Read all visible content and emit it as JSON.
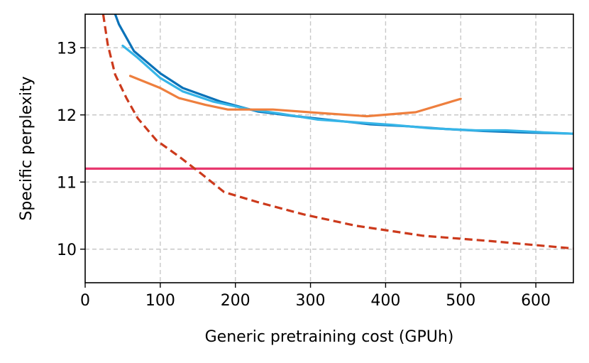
{
  "chart_data": {
    "type": "line",
    "title": "",
    "xlabel": "Generic pretraining cost (GPUh)",
    "ylabel": "Specific perplexity",
    "xlim": [
      0,
      650
    ],
    "ylim": [
      9.5,
      13.5
    ],
    "xticks": [
      0,
      100,
      200,
      300,
      400,
      500,
      600
    ],
    "yticks": [
      10,
      11,
      12,
      13
    ],
    "grid": true,
    "legend": "none",
    "series": [
      {
        "name": "series-dark-blue",
        "color": "#0a72b8",
        "style": "solid",
        "points": [
          [
            40,
            13.5
          ],
          [
            45,
            13.35
          ],
          [
            65,
            12.95
          ],
          [
            100,
            12.62
          ],
          [
            130,
            12.4
          ],
          [
            180,
            12.2
          ],
          [
            230,
            12.05
          ],
          [
            280,
            11.98
          ],
          [
            330,
            11.92
          ],
          [
            380,
            11.86
          ],
          [
            430,
            11.83
          ],
          [
            480,
            11.79
          ],
          [
            530,
            11.76
          ],
          [
            580,
            11.74
          ],
          [
            620,
            11.73
          ],
          [
            650,
            11.72
          ]
        ]
      },
      {
        "name": "series-light-blue",
        "color": "#36b5e8",
        "style": "solid",
        "points": [
          [
            50,
            13.03
          ],
          [
            70,
            12.85
          ],
          [
            100,
            12.55
          ],
          [
            130,
            12.35
          ],
          [
            170,
            12.2
          ],
          [
            220,
            12.08
          ],
          [
            260,
            12.02
          ],
          [
            310,
            11.93
          ],
          [
            360,
            11.89
          ],
          [
            410,
            11.85
          ],
          [
            460,
            11.8
          ],
          [
            520,
            11.77
          ],
          [
            560,
            11.77
          ],
          [
            610,
            11.74
          ],
          [
            650,
            11.72
          ]
        ]
      },
      {
        "name": "series-orange",
        "color": "#ee7f3e",
        "style": "solid",
        "points": [
          [
            60,
            12.58
          ],
          [
            100,
            12.4
          ],
          [
            125,
            12.25
          ],
          [
            160,
            12.15
          ],
          [
            190,
            12.08
          ],
          [
            250,
            12.08
          ],
          [
            310,
            12.03
          ],
          [
            375,
            11.98
          ],
          [
            440,
            12.04
          ],
          [
            500,
            12.24
          ]
        ]
      },
      {
        "name": "series-red-dashed",
        "color": "#cc3a1c",
        "style": "dashed",
        "points": [
          [
            24,
            13.5
          ],
          [
            30,
            13.05
          ],
          [
            40,
            12.6
          ],
          [
            55,
            12.25
          ],
          [
            70,
            11.95
          ],
          [
            95,
            11.62
          ],
          [
            125,
            11.38
          ],
          [
            155,
            11.12
          ],
          [
            185,
            10.85
          ],
          [
            230,
            10.7
          ],
          [
            290,
            10.52
          ],
          [
            360,
            10.35
          ],
          [
            450,
            10.2
          ],
          [
            540,
            10.12
          ],
          [
            600,
            10.06
          ],
          [
            650,
            10.01
          ]
        ]
      }
    ],
    "reference_line": {
      "name": "horizontal-reference",
      "y": 11.2,
      "color": "#e8386f"
    }
  }
}
